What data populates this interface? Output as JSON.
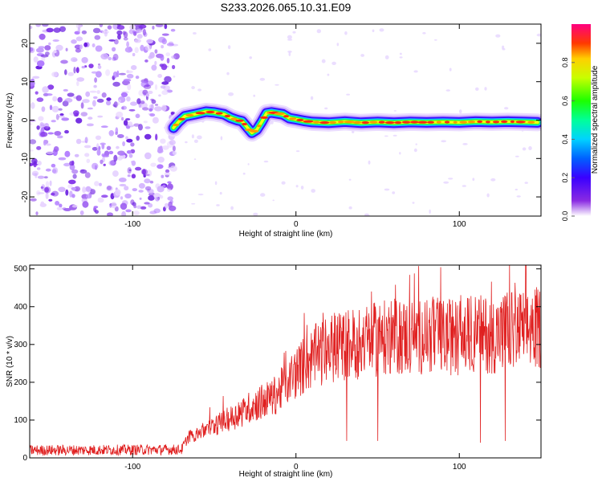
{
  "page_title": "S233.2026.065.10.31.E09",
  "chart_data": [
    {
      "type": "heatmap",
      "title": "S233.2026.065.10.31.E09",
      "xlabel": "Height of straight line (km)",
      "ylabel": "Frequency (Hz)",
      "xlim": [
        -163,
        150
      ],
      "ylim": [
        -25,
        25
      ],
      "x_ticks": [
        -100,
        0,
        100
      ],
      "y_ticks": [
        -20,
        -10,
        0,
        10,
        20
      ],
      "colorbar": {
        "label": "Normalized spectral amplitude",
        "range": [
          0,
          1
        ],
        "ticks": [
          0.0,
          0.2,
          0.4,
          0.6,
          0.8
        ],
        "tick_labels": [
          "0.0",
          "0.2",
          "0.4",
          "0.6",
          "0.8"
        ]
      },
      "noise_region_x": [
        -163,
        -75
      ],
      "ridge": {
        "description": "frequency trace of dominant spectral peak",
        "x": [
          -75,
          -72,
          -68,
          -62,
          -55,
          -50,
          -44,
          -40,
          -36,
          -33,
          -30,
          -27,
          -24,
          -21,
          -18,
          -15,
          -12,
          -8,
          -4,
          0,
          5,
          10,
          20,
          30,
          40,
          50,
          60,
          70,
          80,
          90,
          100,
          110,
          120,
          130,
          140,
          148
        ],
        "y": [
          -2.0,
          -0.5,
          1.0,
          1.5,
          2.2,
          2.0,
          1.5,
          0.6,
          0.0,
          -0.3,
          -1.8,
          -3.3,
          -2.5,
          -0.5,
          1.8,
          2.0,
          1.8,
          1.5,
          0.5,
          0.2,
          -0.2,
          -0.5,
          -0.7,
          -0.4,
          -0.7,
          -0.5,
          -0.7,
          -0.5,
          -0.6,
          -0.5,
          -0.6,
          -0.4,
          -0.5,
          -0.4,
          -0.5,
          -0.6
        ]
      }
    },
    {
      "type": "line",
      "xlabel": "Height of straight line (km)",
      "ylabel": "SNR (10 * v/v)",
      "xlim": [
        -163,
        150
      ],
      "ylim": [
        0,
        510
      ],
      "x_ticks": [
        -100,
        0,
        100
      ],
      "y_ticks": [
        0,
        100,
        200,
        300,
        400,
        500
      ],
      "color": "#e02020",
      "series": [
        {
          "name": "SNR",
          "trend_x": [
            -163,
            -70,
            -66,
            -55,
            -45,
            -35,
            -28,
            -20,
            -15,
            -10,
            -5,
            0,
            10,
            20,
            30,
            40,
            50,
            60,
            70,
            80,
            90,
            100,
            110,
            120,
            130,
            140,
            150
          ],
          "trend_y": [
            20,
            22,
            55,
            75,
            95,
            115,
            135,
            150,
            160,
            175,
            205,
            225,
            265,
            285,
            300,
            305,
            315,
            320,
            320,
            325,
            320,
            320,
            330,
            325,
            335,
            340,
            345
          ],
          "spike_x": [
            31,
            50,
            113,
            128
          ],
          "spike_y": [
            45,
            45,
            40,
            45
          ]
        }
      ]
    }
  ]
}
